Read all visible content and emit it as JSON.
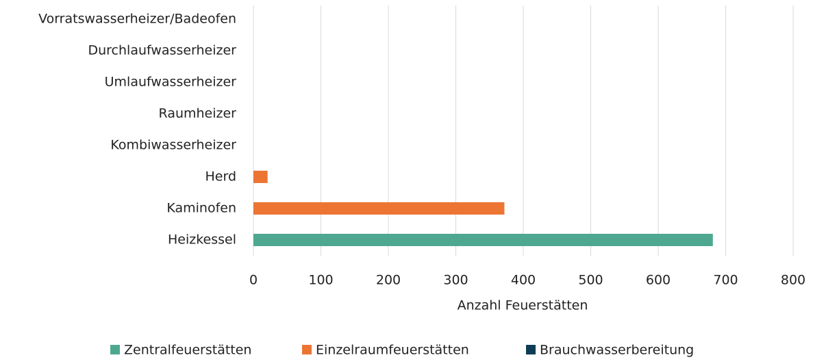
{
  "chart_data": {
    "type": "stacked-bar-horizontal",
    "categories": [
      "Vorratswasserheizer/Badeofen",
      "Durchlaufwasserheizer",
      "Umlaufwasserheizer",
      "Raumheizer",
      "Kombiwasserheizer",
      "Herd",
      "Kaminofen",
      "Heizkessel"
    ],
    "series": [
      {
        "name": "Zentralfeuerstätten",
        "color": "#4ea88f",
        "values": [
          0,
          0,
          0,
          0,
          0,
          0,
          0,
          681
        ]
      },
      {
        "name": "Einzelraumfeuerstätten",
        "color": "#ed7534",
        "values": [
          0,
          0,
          0,
          0,
          0,
          21,
          372,
          0
        ]
      },
      {
        "name": "Brauchwasserbereitung",
        "color": "#0d3d56",
        "values": [
          0,
          0,
          0,
          0,
          0,
          0,
          0,
          0
        ]
      }
    ],
    "xlabel": "Anzahl Feuerstätten",
    "xlim": [
      0,
      800
    ],
    "xticks": [
      0,
      100,
      200,
      300,
      400,
      500,
      600,
      700,
      800
    ],
    "grid": true,
    "legend": "bottom"
  }
}
